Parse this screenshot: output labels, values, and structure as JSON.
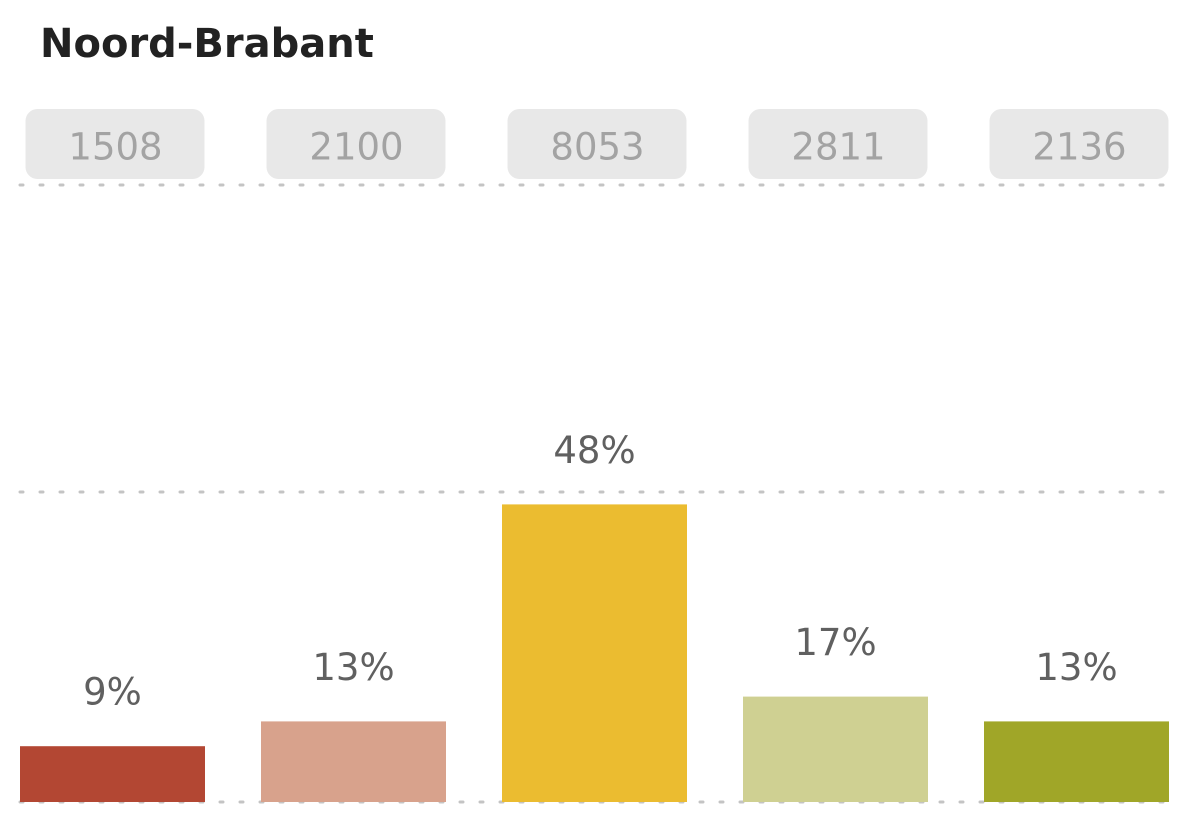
{
  "chart_data": {
    "type": "bar",
    "title": "Noord-Brabant",
    "counts": [
      1508,
      2100,
      8053,
      2811,
      2136
    ],
    "values": [
      9,
      13,
      48,
      17,
      13
    ],
    "value_labels": [
      "9%",
      "13%",
      "48%",
      "17%",
      "13%"
    ],
    "colors": [
      "#b34733",
      "#d8a28c",
      "#ebbc30",
      "#cfd092",
      "#a0a628"
    ],
    "ylim": [
      0,
      100
    ],
    "yticks": [
      0,
      50,
      100
    ],
    "grid": true
  }
}
